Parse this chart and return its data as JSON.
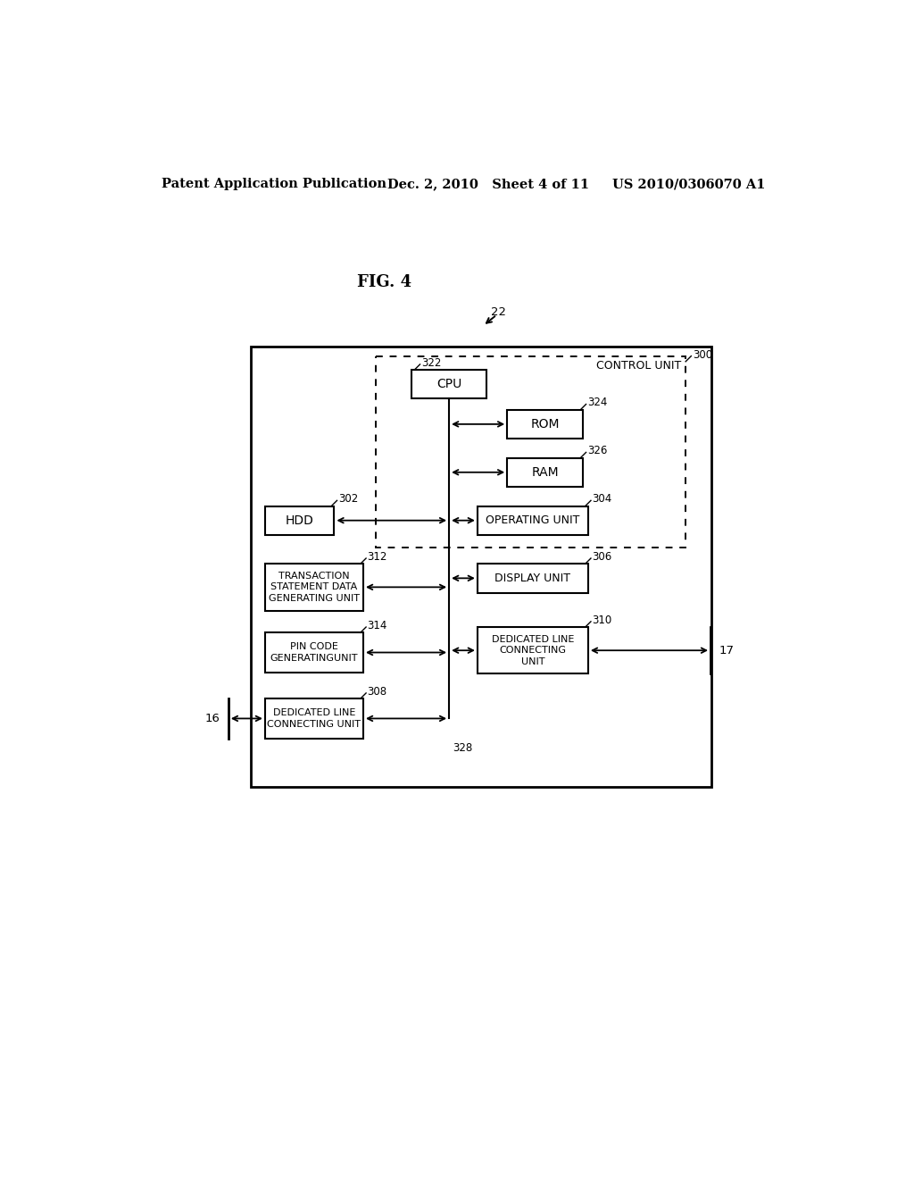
{
  "fig_label": "FIG. 4",
  "header_left": "Patent Application Publication",
  "header_mid": "Dec. 2, 2010   Sheet 4 of 11",
  "header_right": "US 2010/0306070 A1",
  "bg_color": "#ffffff",
  "label_22": "22",
  "label_300": "300",
  "label_322": "322",
  "label_324": "324",
  "label_326": "326",
  "label_302": "302",
  "label_304": "304",
  "label_312": "312",
  "label_306": "306",
  "label_314": "314",
  "label_310": "310",
  "label_308": "308",
  "label_328": "328",
  "label_16": "16",
  "label_17": "17",
  "box_CPU": "CPU",
  "box_ROM": "ROM",
  "box_RAM": "RAM",
  "box_HDD": "HDD",
  "box_OPERATING": "OPERATING UNIT",
  "box_TRANSACTION": "TRANSACTION\nSTATEMENT DATA\nGENERATING UNIT",
  "box_DISPLAY": "DISPLAY UNIT",
  "box_PINCODE": "PIN CODE\nGENERATINGUNIT",
  "box_DEDICATED_LINE_RIGHT": "DEDICATED LINE\nCONNECTING\nUNIT",
  "box_DEDICATED_LINE_LEFT": "DEDICATED LINE\nCONNECTING UNIT",
  "label_CONTROL": "CONTROL UNIT"
}
